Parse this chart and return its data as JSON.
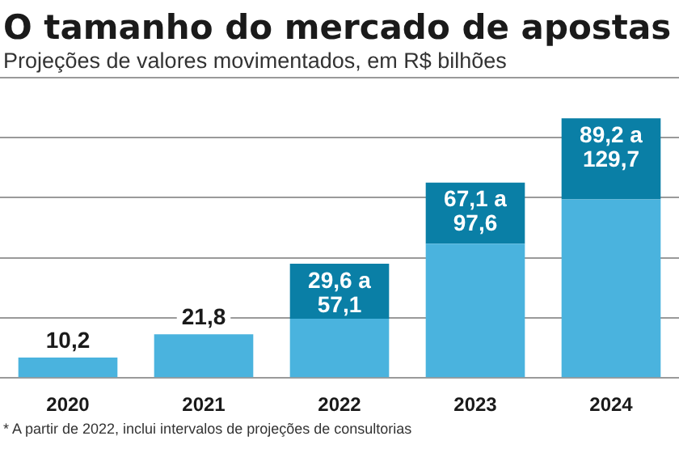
{
  "chart_data": {
    "type": "bar",
    "title": "O tamanho do mercado de apostas",
    "subtitle": "Projeções de valores movimentados, em R$ bilhões",
    "categories": [
      "2020",
      "2021",
      "2022",
      "2023",
      "2024"
    ],
    "stacked": true,
    "series": [
      {
        "color": "#4ab3de",
        "values": [
          10.2,
          21.8,
          29.6,
          67.1,
          89.2
        ],
        "value_labels": [
          "10,2",
          "21,8",
          null,
          null,
          null
        ]
      },
      {
        "color": "#0a7fa6",
        "values": [
          null,
          null,
          27.5,
          30.5,
          40.5
        ]
      }
    ],
    "ylim": [
      0,
      150
    ],
    "yticks": [
      {
        "value": 0,
        "label": null
      },
      {
        "value": 30,
        "label": null
      },
      {
        "value": 60,
        "label": null
      },
      {
        "value": 90,
        "label": null
      },
      {
        "value": 120,
        "label": null
      },
      {
        "value": 150,
        "label": null
      }
    ],
    "tick_labels": "x",
    "grid": "y",
    "legend": false,
    "annotations": [
      {
        "text": "29,6 a 57,1",
        "x": "2022",
        "y": 57.1
      },
      {
        "text": "67,1 a 97,6",
        "x": "2023",
        "y": 97.6
      },
      {
        "text": "89,2 a 129,7",
        "x": "2024",
        "y": 129.7
      },
      "* A partir de 2022, inclui intervalos de projeções de consultorias"
    ]
  }
}
